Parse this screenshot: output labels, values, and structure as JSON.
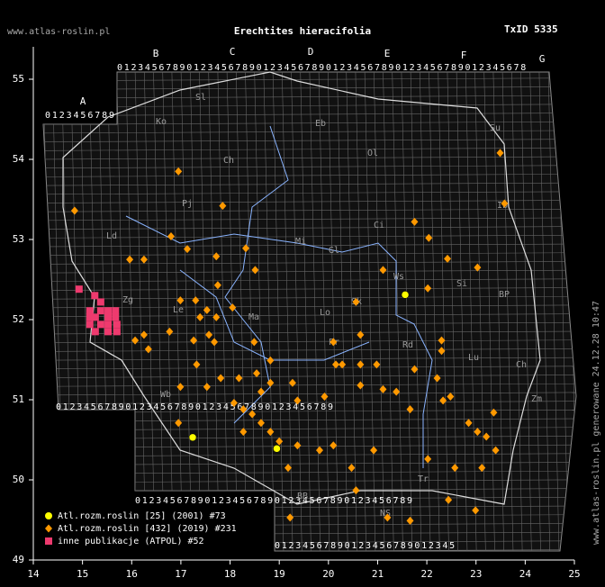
{
  "map": {
    "title": "Erechtites hieracifolia",
    "txid": "TxID 5335",
    "watermark": "www.atlas-roslin.pl",
    "timestamp": "www.atlas-roslin.pl generowane 24.12.28 10:47",
    "xlim": [
      14,
      25
    ],
    "ylim": [
      49,
      55
    ],
    "xticks": [
      14,
      15,
      16,
      17,
      18,
      19,
      20,
      21,
      22,
      23,
      24,
      25
    ],
    "yticks": [
      49,
      50,
      51,
      52,
      53,
      54,
      55
    ],
    "grid_letters": [
      "A",
      "B",
      "C",
      "D",
      "E",
      "F",
      "G"
    ],
    "grid_rows": [
      "0123456789",
      "01234567890123456789012345678901234567890123456789012345678",
      "0123456789012345678901234567890123456789",
      "0123456789012345678901234567890123456789",
      "01234567890123456789012345"
    ],
    "regions": [
      "Ko",
      "Sl",
      "Eb",
      "Ch",
      "Ol",
      "Su",
      "Pj",
      "Ci",
      "Ib",
      "Ld",
      "Mi",
      "Gl",
      "Sk",
      "Ws",
      "Lo",
      "Le",
      "Ma",
      "Pr",
      "Rd",
      "Lu",
      "BP",
      "Ch",
      "Wb",
      "Zm",
      "Tr",
      "NS",
      "BB",
      "Zg",
      "Si"
    ],
    "series": [
      {
        "name": "Atl.rozm.roslin [25] (2001) #73",
        "color": "#ffff00",
        "shape": "circle",
        "points": [
          [
            17.24,
            50.53
          ],
          [
            21.56,
            52.31
          ],
          [
            18.95,
            50.39
          ]
        ]
      },
      {
        "name": "Atl.rozm.roslin [432] (2019) #231",
        "color": "#ff9900",
        "shape": "diamond",
        "points": [
          [
            16.95,
            53.85
          ],
          [
            14.84,
            53.36
          ],
          [
            23.49,
            54.08
          ],
          [
            23.58,
            53.45
          ],
          [
            17.85,
            53.42
          ],
          [
            16.8,
            53.04
          ],
          [
            18.32,
            52.89
          ],
          [
            17.13,
            52.88
          ],
          [
            15.96,
            52.75
          ],
          [
            16.25,
            52.75
          ],
          [
            17.72,
            52.79
          ],
          [
            18.51,
            52.62
          ],
          [
            21.11,
            52.62
          ],
          [
            22.42,
            52.76
          ],
          [
            23.03,
            52.65
          ],
          [
            21.75,
            53.22
          ],
          [
            22.04,
            53.02
          ],
          [
            22.02,
            52.39
          ],
          [
            17.75,
            52.43
          ],
          [
            16.99,
            52.24
          ],
          [
            17.3,
            52.24
          ],
          [
            18.05,
            52.15
          ],
          [
            17.53,
            52.12
          ],
          [
            17.39,
            52.03
          ],
          [
            17.72,
            52.03
          ],
          [
            17.57,
            51.81
          ],
          [
            17.68,
            51.72
          ],
          [
            16.07,
            51.74
          ],
          [
            16.25,
            51.81
          ],
          [
            16.34,
            51.63
          ],
          [
            16.77,
            51.85
          ],
          [
            17.26,
            51.74
          ],
          [
            18.49,
            51.72
          ],
          [
            18.82,
            51.49
          ],
          [
            20.1,
            51.72
          ],
          [
            20.65,
            51.81
          ],
          [
            20.28,
            51.44
          ],
          [
            20.65,
            51.44
          ],
          [
            20.98,
            51.44
          ],
          [
            22.3,
            51.74
          ],
          [
            22.3,
            51.61
          ],
          [
            21.75,
            51.38
          ],
          [
            22.21,
            51.27
          ],
          [
            22.33,
            50.99
          ],
          [
            21.11,
            51.13
          ],
          [
            21.38,
            51.1
          ],
          [
            20.65,
            51.18
          ],
          [
            19.92,
            51.04
          ],
          [
            17.32,
            51.44
          ],
          [
            17.81,
            51.27
          ],
          [
            18.18,
            51.27
          ],
          [
            18.54,
            51.33
          ],
          [
            18.63,
            51.1
          ],
          [
            18.82,
            51.21
          ],
          [
            19.27,
            51.21
          ],
          [
            19.37,
            50.99
          ],
          [
            18.08,
            50.96
          ],
          [
            18.27,
            50.88
          ],
          [
            18.45,
            50.82
          ],
          [
            18.63,
            50.71
          ],
          [
            18.82,
            50.6
          ],
          [
            19.0,
            50.48
          ],
          [
            19.37,
            50.43
          ],
          [
            19.82,
            50.37
          ],
          [
            18.27,
            50.6
          ],
          [
            16.99,
            51.16
          ],
          [
            17.53,
            51.16
          ],
          [
            16.95,
            50.71
          ],
          [
            19.18,
            50.15
          ],
          [
            20.47,
            50.15
          ],
          [
            20.92,
            50.37
          ],
          [
            22.02,
            50.26
          ],
          [
            22.44,
            49.75
          ],
          [
            22.99,
            49.62
          ],
          [
            21.2,
            49.53
          ],
          [
            21.66,
            49.49
          ],
          [
            19.22,
            49.53
          ],
          [
            20.56,
            49.87
          ],
          [
            22.48,
            51.04
          ],
          [
            22.85,
            50.71
          ],
          [
            23.03,
            50.6
          ],
          [
            23.21,
            50.54
          ],
          [
            23.36,
            50.84
          ],
          [
            23.4,
            50.37
          ],
          [
            22.57,
            50.15
          ],
          [
            23.12,
            50.15
          ],
          [
            20.56,
            52.22
          ],
          [
            20.15,
            51.44
          ],
          [
            20.1,
            50.43
          ],
          [
            21.66,
            50.88
          ]
        ]
      },
      {
        "name": "inne publikacje (ATPOL) #52",
        "color": "#ee3a6e",
        "shape": "square",
        "points": [
          [
            14.93,
            52.38
          ],
          [
            15.25,
            52.3
          ],
          [
            15.37,
            52.22
          ],
          [
            15.15,
            52.11
          ],
          [
            15.37,
            52.11
          ],
          [
            15.52,
            52.11
          ],
          [
            15.67,
            52.11
          ],
          [
            15.15,
            52.03
          ],
          [
            15.26,
            52.03
          ],
          [
            15.52,
            52.03
          ],
          [
            15.67,
            52.03
          ],
          [
            15.15,
            51.94
          ],
          [
            15.37,
            51.94
          ],
          [
            15.52,
            51.94
          ],
          [
            15.7,
            51.94
          ],
          [
            15.26,
            51.85
          ],
          [
            15.52,
            51.85
          ],
          [
            15.7,
            51.85
          ]
        ]
      }
    ]
  }
}
